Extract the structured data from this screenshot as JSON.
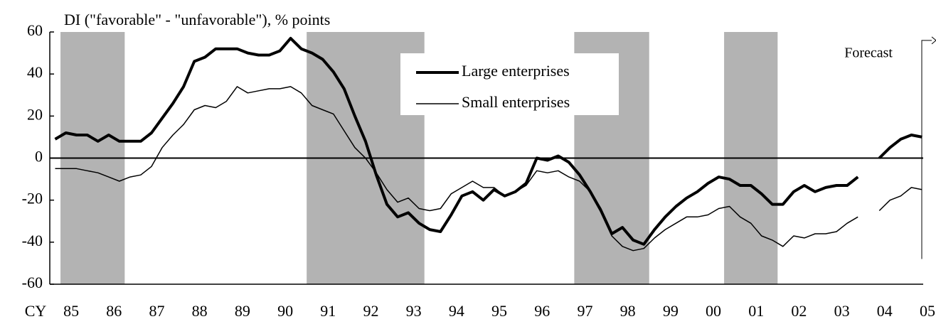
{
  "chart_data": {
    "type": "line",
    "title": "DI (\"favorable\" - \"unfavorable\"), % points",
    "x_label": "CY",
    "annotation": "Forecast",
    "x": [
      1985.125,
      1985.375,
      1985.625,
      1985.875,
      1986.125,
      1986.375,
      1986.625,
      1986.875,
      1987.125,
      1987.375,
      1987.625,
      1987.875,
      1988.125,
      1988.375,
      1988.625,
      1988.875,
      1989.125,
      1989.375,
      1989.625,
      1989.875,
      1990.125,
      1990.375,
      1990.625,
      1990.875,
      1991.125,
      1991.375,
      1991.625,
      1991.875,
      1992.125,
      1992.375,
      1992.625,
      1992.875,
      1993.125,
      1993.375,
      1993.625,
      1993.875,
      1994.125,
      1994.375,
      1994.625,
      1994.875,
      1995.125,
      1995.375,
      1995.625,
      1995.875,
      1996.125,
      1996.375,
      1996.625,
      1996.875,
      1997.125,
      1997.375,
      1997.625,
      1997.875,
      1998.125,
      1998.375,
      1998.625,
      1998.875,
      1999.125,
      1999.375,
      1999.625,
      1999.875,
      2000.125,
      2000.375,
      2000.625,
      2000.875,
      2001.125,
      2001.375,
      2001.625,
      2001.875,
      2002.125,
      2002.375,
      2002.625,
      2002.875,
      2003.125,
      2003.375,
      2003.625,
      2003.875,
      2004.125,
      2004.375,
      2004.625,
      2004.875,
      2005.125,
      2005.375
    ],
    "series": [
      {
        "name": "Large enterprises",
        "color": "#000000",
        "width": 4,
        "values": [
          9,
          12,
          11,
          11,
          8,
          11,
          8,
          8,
          8,
          12,
          19,
          26,
          34,
          46,
          48,
          52,
          52,
          52,
          50,
          49,
          49,
          51,
          57,
          52,
          50,
          47,
          41,
          33,
          20,
          8,
          -8,
          -22,
          -28,
          -26,
          -31,
          -34,
          -35,
          -27,
          -18,
          -16,
          -20,
          -15,
          -18,
          -16,
          -12,
          0,
          -1,
          1,
          -2,
          -8,
          -16,
          -25,
          -36,
          -33,
          -39,
          -41,
          -34,
          -28,
          -23,
          -19,
          -16,
          -12,
          -9,
          -10,
          -13,
          -13,
          -17,
          -22,
          -22,
          -16,
          -13,
          -16,
          -14,
          -13,
          -13,
          -9,
          null,
          0,
          5,
          9,
          11,
          10
        ]
      },
      {
        "name": "Small enterprises",
        "color": "#000000",
        "width": 1.5,
        "values": [
          -5,
          -5,
          -5,
          -6,
          -7,
          -9,
          -11,
          -9,
          -8,
          -4,
          5,
          11,
          16,
          23,
          25,
          24,
          27,
          34,
          31,
          32,
          33,
          33,
          34,
          31,
          25,
          23,
          21,
          13,
          5,
          0,
          -7,
          -15,
          -21,
          -19,
          -24,
          -25,
          -24,
          -17,
          -14,
          -11,
          -14,
          -14,
          -18,
          -16,
          -13,
          -6,
          -7,
          -6,
          -9,
          -11,
          -16,
          -24,
          -37,
          -42,
          -44,
          -43,
          -38,
          -34,
          -31,
          -28,
          -28,
          -27,
          -24,
          -23,
          -28,
          -31,
          -37,
          -39,
          -42,
          -37,
          -38,
          -36,
          -36,
          -35,
          -31,
          -28,
          null,
          -25,
          -20,
          -18,
          -14,
          -15
        ]
      }
    ],
    "shaded_periods": [
      [
        1985.25,
        1986.75
      ],
      [
        1991,
        1993.75
      ],
      [
        1997.25,
        1999
      ],
      [
        2000.75,
        2002
      ]
    ],
    "shade_color": "#b3b3b3",
    "xlim": [
      1985,
      2005.5
    ],
    "xticks": [
      {
        "value": 1985.5,
        "label": "85"
      },
      {
        "value": 1986.5,
        "label": "86"
      },
      {
        "value": 1987.5,
        "label": "87"
      },
      {
        "value": 1988.5,
        "label": "88"
      },
      {
        "value": 1989.5,
        "label": "89"
      },
      {
        "value": 1990.5,
        "label": "90"
      },
      {
        "value": 1991.5,
        "label": "91"
      },
      {
        "value": 1992.5,
        "label": "92"
      },
      {
        "value": 1993.5,
        "label": "93"
      },
      {
        "value": 1994.5,
        "label": "94"
      },
      {
        "value": 1995.5,
        "label": "95"
      },
      {
        "value": 1996.5,
        "label": "96"
      },
      {
        "value": 1997.5,
        "label": "97"
      },
      {
        "value": 1998.5,
        "label": "98"
      },
      {
        "value": 1999.5,
        "label": "99"
      },
      {
        "value": 2000.5,
        "label": "00"
      },
      {
        "value": 2001.5,
        "label": "01"
      },
      {
        "value": 2002.5,
        "label": "02"
      },
      {
        "value": 2003.5,
        "label": "03"
      },
      {
        "value": 2004.5,
        "label": "04"
      },
      {
        "value": 2005.5,
        "label": "05"
      }
    ],
    "ylim": [
      -60,
      60
    ],
    "yticks": [
      -60,
      -40,
      -20,
      0,
      20,
      40,
      60
    ],
    "legend_loc": "upper center"
  }
}
